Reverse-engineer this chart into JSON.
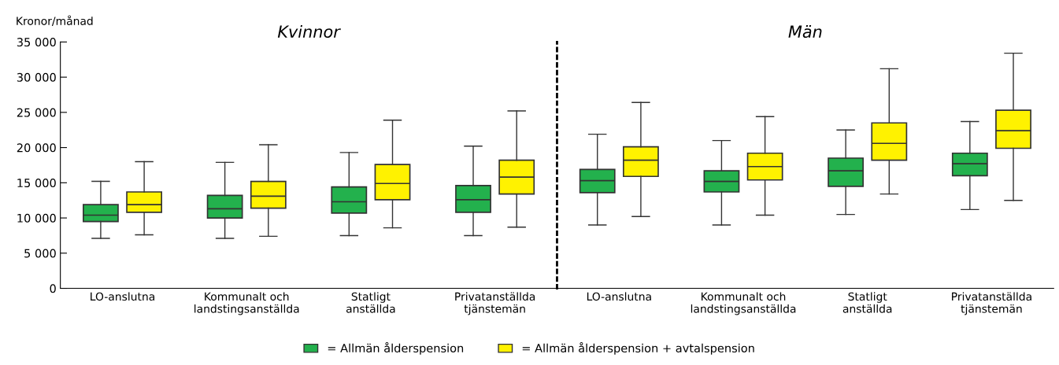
{
  "chart_data": [
    {
      "type": "box",
      "title": "Kvinnor",
      "ylabel": "Kronor/månad",
      "categories": [
        "LO-anslutna",
        "Kommunalt och\nlandstingsanställda",
        "Statligt\nanställda",
        "Privatanställda\ntjänstemän"
      ],
      "ylim": [
        0,
        35000
      ],
      "yticks": [
        {
          "value": 0,
          "label": "0"
        },
        {
          "value": 5000,
          "label": "5 000"
        },
        {
          "value": 10000,
          "label": "10 000"
        },
        {
          "value": 15000,
          "label": "15 000"
        },
        {
          "value": 20000,
          "label": "20 000"
        },
        {
          "value": 25000,
          "label": "25 000"
        },
        {
          "value": 30000,
          "label": "30 000"
        },
        {
          "value": 35000,
          "label": "35 000"
        }
      ],
      "series": [
        {
          "color": "#23b14d",
          "boxes": [
            {
              "low": 7100,
              "q1": 9500,
              "median": 10400,
              "q3": 11900,
              "high": 15200
            },
            {
              "low": 7100,
              "q1": 10000,
              "median": 11300,
              "q3": 13200,
              "high": 17900
            },
            {
              "low": 7500,
              "q1": 10700,
              "median": 12300,
              "q3": 14400,
              "high": 19300
            },
            {
              "low": 7500,
              "q1": 10800,
              "median": 12600,
              "q3": 14600,
              "high": 20200
            }
          ]
        },
        {
          "color": "#fff200",
          "boxes": [
            {
              "low": 7600,
              "q1": 10800,
              "median": 11900,
              "q3": 13700,
              "high": 18000
            },
            {
              "low": 7400,
              "q1": 11400,
              "median": 13100,
              "q3": 15200,
              "high": 20400
            },
            {
              "low": 8600,
              "q1": 12600,
              "median": 14900,
              "q3": 17600,
              "high": 23900
            },
            {
              "low": 8700,
              "q1": 13400,
              "median": 15800,
              "q3": 18200,
              "high": 25200
            }
          ]
        }
      ]
    },
    {
      "type": "box",
      "title": "Män",
      "tick_labels": "x",
      "legend": "bottom",
      "categories": [
        "LO-anslutna",
        "Kommunalt och\nlandstingsanställda",
        "Statligt\nanställda",
        "Privatanställda\ntjänstemän"
      ],
      "ylim": [
        0,
        35000
      ],
      "series": [
        {
          "name": "= Allmän ålderspension",
          "color": "#23b14d",
          "boxes": [
            {
              "low": 9000,
              "q1": 13600,
              "median": 15300,
              "q3": 16900,
              "high": 21900
            },
            {
              "low": 9000,
              "q1": 13700,
              "median": 15200,
              "q3": 16700,
              "high": 21000
            },
            {
              "low": 10500,
              "q1": 14500,
              "median": 16700,
              "q3": 18500,
              "high": 22500
            },
            {
              "low": 11200,
              "q1": 16000,
              "median": 17700,
              "q3": 19200,
              "high": 23700
            }
          ]
        },
        {
          "name": "= Allmän ålderspension + avtalspension",
          "color": "#fff200",
          "boxes": [
            {
              "low": 10200,
              "q1": 15900,
              "median": 18200,
              "q3": 20100,
              "high": 26400
            },
            {
              "low": 10400,
              "q1": 15400,
              "median": 17300,
              "q3": 19200,
              "high": 24400
            },
            {
              "low": 13400,
              "q1": 18200,
              "median": 20600,
              "q3": 23500,
              "high": 31200
            },
            {
              "low": 12500,
              "q1": 19900,
              "median": 22400,
              "q3": 25300,
              "high": 33400
            }
          ]
        }
      ]
    }
  ]
}
